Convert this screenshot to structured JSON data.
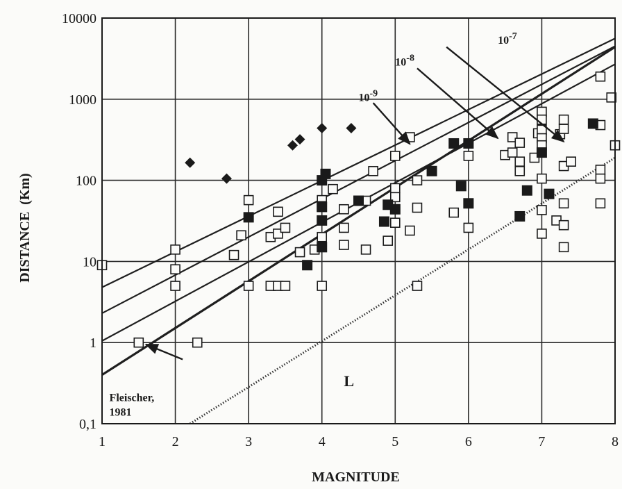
{
  "chart_data": {
    "type": "scatter",
    "xlabel": "MAGNITUDE",
    "ylabel": "DISTANCE  (Km)",
    "xlim": [
      1,
      8
    ],
    "ylim": [
      0.1,
      10000
    ],
    "yscale": "log",
    "grid": true,
    "x_ticks": [
      "1",
      "2",
      "3",
      "4",
      "5",
      "6",
      "7",
      "8"
    ],
    "y_ticks": [
      "0,1",
      "1",
      "10",
      "100",
      "1000",
      "10000"
    ],
    "y_tick_values": [
      0.1,
      1,
      10,
      100,
      1000,
      10000
    ],
    "series": [
      {
        "marker": "open-square",
        "points": [
          [
            1,
            9
          ],
          [
            1.5,
            1
          ],
          [
            2,
            14
          ],
          [
            2,
            8
          ],
          [
            2,
            5
          ],
          [
            2.3,
            1
          ],
          [
            2.8,
            12
          ],
          [
            2.9,
            21
          ],
          [
            3,
            57
          ],
          [
            3,
            5
          ],
          [
            3.3,
            20
          ],
          [
            3.3,
            5
          ],
          [
            3.4,
            22
          ],
          [
            3.4,
            41
          ],
          [
            3.4,
            5
          ],
          [
            3.5,
            26
          ],
          [
            3.5,
            5
          ],
          [
            3.7,
            13
          ],
          [
            3.9,
            14
          ],
          [
            4,
            57
          ],
          [
            4,
            48
          ],
          [
            4,
            20
          ],
          [
            4,
            5
          ],
          [
            4.15,
            78
          ],
          [
            4.3,
            44
          ],
          [
            4.3,
            26
          ],
          [
            4.3,
            16
          ],
          [
            4.6,
            56
          ],
          [
            4.6,
            14
          ],
          [
            4.7,
            130
          ],
          [
            4.9,
            18
          ],
          [
            5,
            200
          ],
          [
            5,
            80
          ],
          [
            5,
            62
          ],
          [
            5,
            44
          ],
          [
            5,
            30
          ],
          [
            5.2,
            340
          ],
          [
            5.2,
            24
          ],
          [
            5.3,
            100
          ],
          [
            5.3,
            46
          ],
          [
            5.3,
            5
          ],
          [
            5.8,
            40
          ],
          [
            6,
            200
          ],
          [
            6,
            26
          ],
          [
            6.5,
            205
          ],
          [
            6.6,
            340
          ],
          [
            6.6,
            220
          ],
          [
            6.7,
            290
          ],
          [
            6.7,
            170
          ],
          [
            6.7,
            130
          ],
          [
            6.9,
            190
          ],
          [
            6.95,
            380
          ],
          [
            7,
            700
          ],
          [
            7,
            560
          ],
          [
            7,
            420
          ],
          [
            7,
            330
          ],
          [
            7,
            270
          ],
          [
            7,
            105
          ],
          [
            7,
            43
          ],
          [
            7,
            22
          ],
          [
            7.2,
            32
          ],
          [
            7.25,
            370
          ],
          [
            7.3,
            560
          ],
          [
            7.3,
            430
          ],
          [
            7.3,
            150
          ],
          [
            7.3,
            52
          ],
          [
            7.3,
            28
          ],
          [
            7.3,
            15
          ],
          [
            7.4,
            170
          ],
          [
            7.8,
            1900
          ],
          [
            7.8,
            480
          ],
          [
            7.8,
            135
          ],
          [
            7.8,
            105
          ],
          [
            7.8,
            52
          ],
          [
            7.95,
            1050
          ],
          [
            8,
            270
          ]
        ]
      },
      {
        "marker": "filled-square",
        "points": [
          [
            3,
            35
          ],
          [
            3.8,
            9
          ],
          [
            4,
            100
          ],
          [
            4,
            47
          ],
          [
            4,
            32
          ],
          [
            4,
            15
          ],
          [
            4.05,
            120
          ],
          [
            4.5,
            56
          ],
          [
            4.85,
            31
          ],
          [
            4.9,
            50
          ],
          [
            5,
            44
          ],
          [
            5.5,
            130
          ],
          [
            5.8,
            285
          ],
          [
            5.9,
            85
          ],
          [
            6,
            285
          ],
          [
            6,
            52
          ],
          [
            6.7,
            36
          ],
          [
            6.8,
            75
          ],
          [
            7,
            220
          ],
          [
            7.1,
            68
          ],
          [
            7.7,
            500
          ]
        ]
      },
      {
        "marker": "filled-diamond",
        "points": [
          [
            2.2,
            165
          ],
          [
            2.7,
            105
          ],
          [
            3.6,
            270
          ],
          [
            3.7,
            320
          ],
          [
            4,
            440
          ],
          [
            4.4,
            440
          ]
        ]
      },
      {
        "name": "10-7",
        "marker": "line",
        "points": [
          [
            1,
            4.8
          ],
          [
            8,
            5600
          ]
        ]
      },
      {
        "name": "10-8",
        "marker": "line",
        "points": [
          [
            1,
            2.3
          ],
          [
            8,
            4500
          ]
        ]
      },
      {
        "name": "10-9",
        "marker": "line",
        "points": [
          [
            1,
            1.05
          ],
          [
            8,
            2700
          ]
        ]
      },
      {
        "name": "Fleischer, 1981",
        "marker": "line",
        "points": [
          [
            1,
            0.4
          ],
          [
            8,
            4400
          ]
        ]
      },
      {
        "name": "L",
        "marker": "dotted-line",
        "points": [
          [
            2.2,
            0.1
          ],
          [
            8,
            190
          ]
        ]
      }
    ],
    "annotations": [
      {
        "text_parts": [
          "10",
          "-7"
        ],
        "label_at": [
          6.4,
          4800
        ],
        "arrow_from": [
          5.7,
          4400
        ],
        "arrow_to": [
          7.3,
          300
        ]
      },
      {
        "text_parts": [
          "10",
          "-8"
        ],
        "label_at": [
          5.0,
          2600
        ],
        "arrow_from": [
          5.3,
          2400
        ],
        "arrow_to": [
          6.4,
          330
        ]
      },
      {
        "text_parts": [
          "10",
          "-9"
        ],
        "label_at": [
          4.5,
          950
        ],
        "arrow_from": [
          4.7,
          900
        ],
        "arrow_to": [
          5.2,
          280
        ]
      },
      {
        "text_lines": [
          "Fleischer,",
          "1981"
        ],
        "label_at": [
          1.1,
          0.19
        ],
        "arrow_from": [
          2.1,
          0.62
        ],
        "arrow_to": [
          1.6,
          0.95
        ]
      },
      {
        "text": "L",
        "label_at": [
          4.3,
          0.29
        ]
      }
    ]
  }
}
